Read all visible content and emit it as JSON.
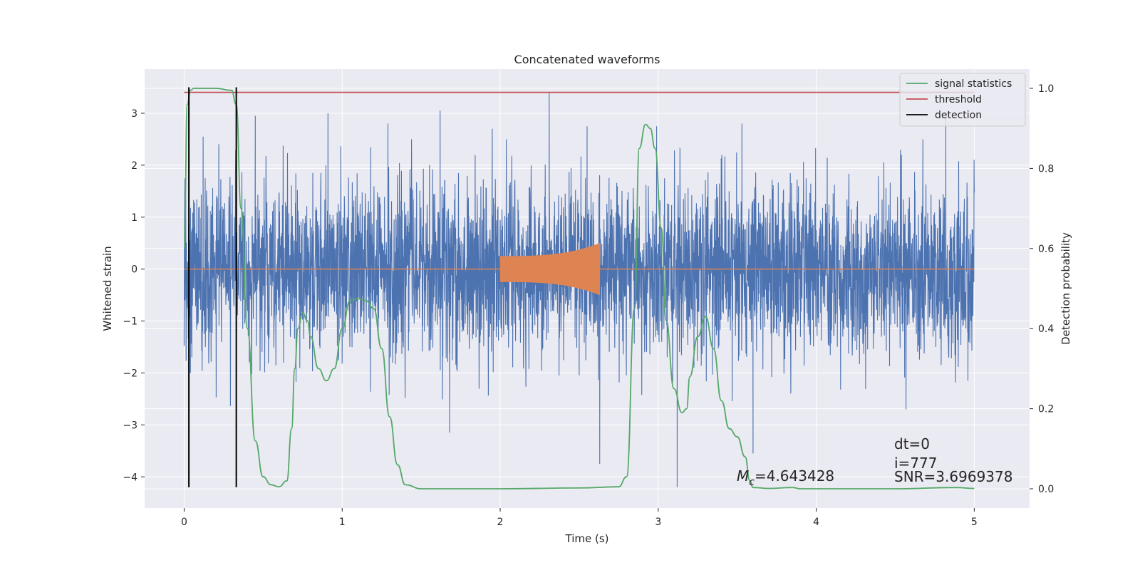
{
  "chart_data": {
    "type": "line",
    "title": "Concatenated waveforms",
    "xlabel": "Time (s)",
    "ylabel": "Whitened strain",
    "y2label": "Detection probability",
    "xlim": [
      -0.25,
      5.35
    ],
    "ylim": [
      -4.6,
      3.85
    ],
    "y2lim": [
      -0.048,
      1.048
    ],
    "xticks": [
      0,
      1,
      2,
      3,
      4,
      5
    ],
    "xtick_labels": [
      "0",
      "1",
      "2",
      "3",
      "4",
      "5"
    ],
    "yticks": [
      -4,
      -3,
      -2,
      -1,
      0,
      1,
      2,
      3
    ],
    "ytick_labels": [
      "−4",
      "−3",
      "−2",
      "−1",
      "0",
      "1",
      "2",
      "3"
    ],
    "y2ticks": [
      0.0,
      0.2,
      0.4,
      0.6,
      0.8,
      1.0
    ],
    "y2tick_labels": [
      "0.0",
      "0.2",
      "0.4",
      "0.6",
      "0.8",
      "1.0"
    ],
    "grid": true,
    "legend_position": "upper-right",
    "legend": [
      {
        "label": "signal statistics",
        "color": "#55a868"
      },
      {
        "label": "threshold",
        "color": "#c44e52"
      },
      {
        "label": "detection",
        "color": "#000000"
      }
    ],
    "colors": {
      "whitened": "#4c72b0",
      "template": "#dd8452",
      "statistics": "#55a868",
      "threshold": "#c44e52",
      "detection": "#000000",
      "background": "#eaeaf2",
      "grid": "#ffffff"
    },
    "whitened_strain": {
      "t_start": 0.0,
      "t_end": 5.0,
      "typical_amplitude": 1.1,
      "peak_values": [
        {
          "t": 0.01,
          "v": 1.35
        },
        {
          "t": 0.12,
          "v": 2.55
        },
        {
          "t": 0.45,
          "v": 2.95
        },
        {
          "t": 0.91,
          "v": 3.0
        },
        {
          "t": 1.29,
          "v": 2.8
        },
        {
          "t": 1.62,
          "v": 3.05
        },
        {
          "t": 1.95,
          "v": 2.7
        },
        {
          "t": 2.31,
          "v": 3.4
        },
        {
          "t": 2.55,
          "v": 2.75
        },
        {
          "t": 2.99,
          "v": 2.75
        },
        {
          "t": 3.53,
          "v": 2.8
        },
        {
          "t": 4.82,
          "v": 3.0
        },
        {
          "t": 2.63,
          "v": -3.75
        },
        {
          "t": 3.12,
          "v": -4.2
        },
        {
          "t": 3.6,
          "v": -3.55
        },
        {
          "t": 1.68,
          "v": -3.15
        },
        {
          "t": 4.96,
          "v": -2.15
        },
        {
          "t": 0.04,
          "v": -2.0
        }
      ]
    },
    "template": {
      "t_start": 2.0,
      "t_end": 2.63,
      "amp_start": 0.25,
      "amp_end": 0.5
    },
    "signal_statistics": {
      "x": [
        0.0,
        0.02,
        0.04,
        0.06,
        0.1,
        0.2,
        0.3,
        0.33,
        0.36,
        0.4,
        0.45,
        0.5,
        0.55,
        0.6,
        0.65,
        0.68,
        0.7,
        0.72,
        0.75,
        0.78,
        0.8,
        0.85,
        0.9,
        0.95,
        1.0,
        1.05,
        1.1,
        1.15,
        1.2,
        1.25,
        1.3,
        1.35,
        1.4,
        1.5,
        2.0,
        2.5,
        2.75,
        2.8,
        2.85,
        2.88,
        2.92,
        2.95,
        2.98,
        3.02,
        3.05,
        3.1,
        3.15,
        3.18,
        3.2,
        3.25,
        3.3,
        3.35,
        3.4,
        3.45,
        3.5,
        3.55,
        3.58,
        3.6,
        3.7,
        3.85,
        3.9,
        4.0,
        4.5,
        4.88,
        5.0
      ],
      "y": [
        0.6,
        0.96,
        0.995,
        1.0,
        1.0,
        1.0,
        0.995,
        0.96,
        0.7,
        0.4,
        0.12,
        0.03,
        0.01,
        0.005,
        0.02,
        0.15,
        0.3,
        0.4,
        0.44,
        0.42,
        0.38,
        0.3,
        0.27,
        0.3,
        0.4,
        0.47,
        0.475,
        0.47,
        0.45,
        0.35,
        0.18,
        0.06,
        0.01,
        0.0,
        0.0,
        0.002,
        0.005,
        0.03,
        0.45,
        0.85,
        0.91,
        0.9,
        0.85,
        0.65,
        0.42,
        0.25,
        0.19,
        0.2,
        0.28,
        0.38,
        0.43,
        0.35,
        0.22,
        0.15,
        0.13,
        0.08,
        0.02,
        0.003,
        0.001,
        0.003,
        0.0,
        0.0,
        0.0,
        0.003,
        0.001
      ]
    },
    "threshold_value": 0.99,
    "threshold_x": [
      0.0,
      5.0
    ],
    "detections": [
      0.03,
      0.33
    ],
    "detection_ymin": -4.2,
    "detection_ymax": 3.5
  },
  "annotations": {
    "mc_symbol": "M",
    "mc_subscript": "c",
    "mc_value": "=4.643428",
    "dt": "dt=0",
    "i": "i=777",
    "snr": "SNR=3.6969378"
  }
}
